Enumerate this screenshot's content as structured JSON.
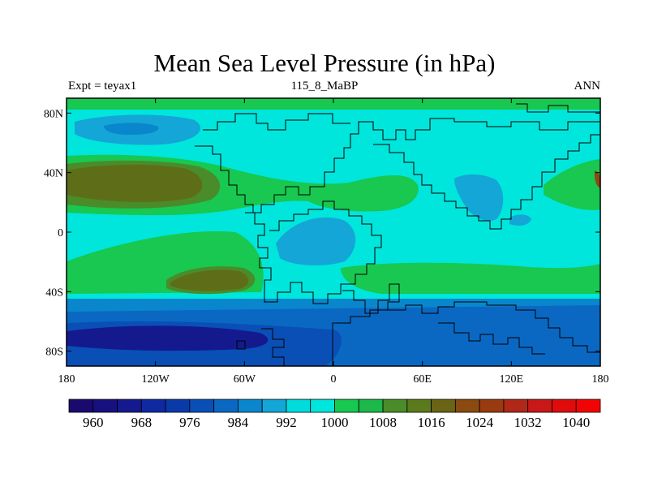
{
  "title": "Mean Sea Level Pressure (in hPa)",
  "subtitle_left": "Expt = teyax1",
  "subtitle_center": "115_8_MaBP",
  "subtitle_right": "ANN",
  "chart_data": {
    "type": "heatmap",
    "variable": "Mean Sea Level Pressure",
    "units": "hPa",
    "experiment": "teyax1",
    "period": "115_8_MaBP",
    "season": "ANN",
    "x_range": [
      -180,
      180
    ],
    "y_range": [
      -90,
      90
    ],
    "x_ticks": [
      {
        "value": -180,
        "label": "180"
      },
      {
        "value": -120,
        "label": "120W"
      },
      {
        "value": -60,
        "label": "60W"
      },
      {
        "value": 0,
        "label": "0"
      },
      {
        "value": 60,
        "label": "60E"
      },
      {
        "value": 120,
        "label": "120E"
      },
      {
        "value": 180,
        "label": "180"
      }
    ],
    "y_ticks": [
      {
        "value": 80,
        "label": "80N"
      },
      {
        "value": 40,
        "label": "40N"
      },
      {
        "value": 0,
        "label": "0"
      },
      {
        "value": -40,
        "label": "40S"
      },
      {
        "value": -80,
        "label": "80S"
      }
    ],
    "colorbar": {
      "levels": [
        960,
        964,
        968,
        972,
        976,
        980,
        984,
        988,
        992,
        996,
        1000,
        1004,
        1008,
        1012,
        1016,
        1020,
        1024,
        1028,
        1032,
        1036,
        1040
      ],
      "labels": [
        "960",
        "968",
        "976",
        "984",
        "992",
        "1000",
        "1008",
        "1016",
        "1024",
        "1032",
        "1040"
      ],
      "colors": [
        "#1b0a6e",
        "#17107f",
        "#141a8e",
        "#0f2aa0",
        "#0a3aa8",
        "#0a4fb6",
        "#0a68c2",
        "#0a86cc",
        "#14a6d6",
        "#00dcdc",
        "#00e6dc",
        "#18c850",
        "#1cb84a",
        "#4a8c2a",
        "#5a7a1c",
        "#6a6414",
        "#8a4a10",
        "#9a3a10",
        "#b02818",
        "#c81818",
        "#e00c0c",
        "#f20404"
      ]
    }
  }
}
